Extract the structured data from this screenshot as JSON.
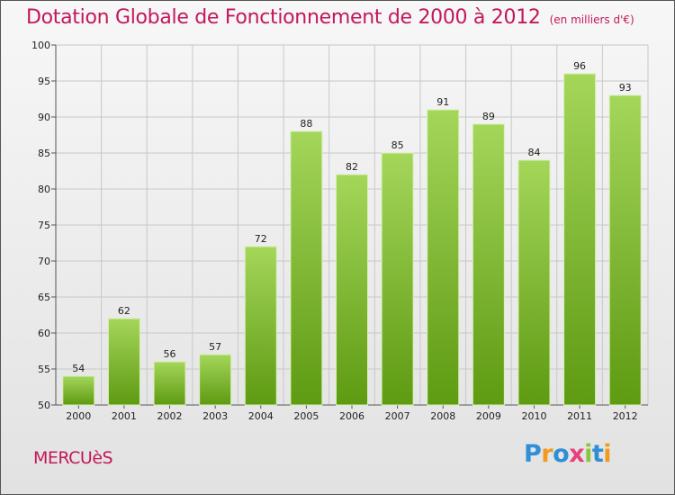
{
  "header": {
    "title": "Dotation Globale de Fonctionnement de 2000 à 2012",
    "subtitle": "(en milliers d'€)"
  },
  "footer": {
    "place": "MERCUèS",
    "logo": {
      "text": "Proxiti",
      "letter_colors": [
        "#2e8fd6",
        "#f39a1e",
        "#2e8fd6",
        "#e6417a",
        "#8cc63f",
        "#2e8fd6",
        "#f39a1e"
      ]
    }
  },
  "colors": {
    "accent": "#c2185b",
    "bar_top": "#a4d65a",
    "bar_bottom": "#5e9a12",
    "grid": "#c8c8c8"
  },
  "chart_data": {
    "type": "bar",
    "title": "Dotation Globale de Fonctionnement de 2000 à 2012",
    "subtitle": "(en milliers d'€)",
    "xlabel": "",
    "ylabel": "",
    "categories": [
      "2000",
      "2001",
      "2002",
      "2003",
      "2004",
      "2005",
      "2006",
      "2007",
      "2008",
      "2009",
      "2010",
      "2011",
      "2012"
    ],
    "values": [
      54,
      62,
      56,
      57,
      72,
      88,
      82,
      85,
      91,
      89,
      84,
      96,
      93
    ],
    "ylim": [
      50,
      100
    ],
    "yticks": [
      50,
      55,
      60,
      65,
      70,
      75,
      80,
      85,
      90,
      95,
      100
    ],
    "grid": true
  }
}
